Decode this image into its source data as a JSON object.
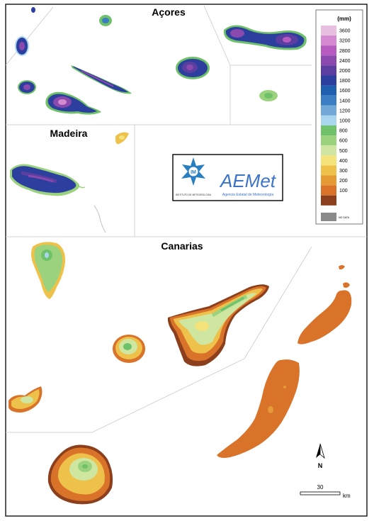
{
  "regions": {
    "azores": "Açores",
    "madeira": "Madeira",
    "canarias": "Canarias"
  },
  "legend": {
    "title": "(mm)",
    "steps": [
      {
        "label": "3600",
        "color": "#e8bfe0"
      },
      {
        "label": "3200",
        "color": "#d58ad0"
      },
      {
        "label": "2800",
        "color": "#b65bbf"
      },
      {
        "label": "2400",
        "color": "#8a4aad"
      },
      {
        "label": "2000",
        "color": "#5a3ea0"
      },
      {
        "label": "1800",
        "color": "#2c3f9e"
      },
      {
        "label": "1600",
        "color": "#1f5fb0"
      },
      {
        "label": "1400",
        "color": "#3b7ec4"
      },
      {
        "label": "1200",
        "color": "#71a8d8"
      },
      {
        "label": "1000",
        "color": "#a9d6ee"
      },
      {
        "label": "800",
        "color": "#6fc16a"
      },
      {
        "label": "600",
        "color": "#9ad27e"
      },
      {
        "label": "500",
        "color": "#cfe6a0"
      },
      {
        "label": "400",
        "color": "#f4e27a"
      },
      {
        "label": "300",
        "color": "#eec14a"
      },
      {
        "label": "200",
        "color": "#e59a36"
      },
      {
        "label": "100",
        "color": "#d9732a"
      },
      {
        "label": "",
        "color": "#8c3f1c"
      }
    ],
    "nodata_label": "NO DATA",
    "nodata_color": "#8a8a8a"
  },
  "logo": {
    "im_text": "IM",
    "im_caption": "INSTITUTO DE METEOROLOGIA",
    "aemet_text": "AEMet",
    "aemet_caption": "Agencia Estatal de Meteorología"
  },
  "scale": {
    "value": "30",
    "unit": "km"
  },
  "north": "N"
}
